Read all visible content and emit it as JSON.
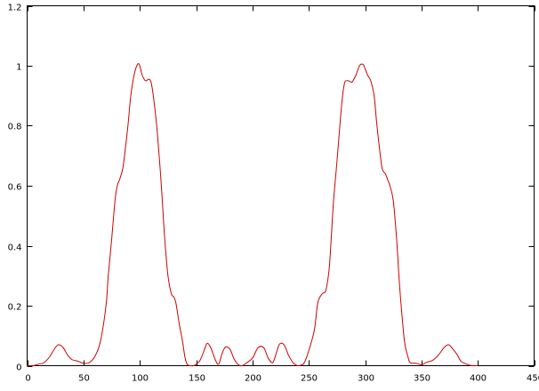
{
  "chart_data": {
    "type": "line",
    "title": "",
    "xlabel": "",
    "ylabel": "",
    "xlim": [
      0,
      450
    ],
    "ylim": [
      0,
      1.2
    ],
    "xticks": [
      0,
      50,
      100,
      150,
      200,
      250,
      300,
      350,
      400,
      450
    ],
    "yticks": [
      0,
      0.2,
      0.4,
      0.6,
      0.8,
      1,
      1.2
    ],
    "xtick_labels": [
      "0",
      "50",
      "100",
      "150",
      "200",
      "250",
      "300",
      "350",
      "400",
      "450"
    ],
    "ytick_labels": [
      "0",
      "0.2",
      "0.4",
      "0.6",
      "0.8",
      "1",
      "1.2"
    ],
    "grid": false,
    "legend": "none",
    "series": [
      {
        "color": "#cc0000",
        "x": [
          0,
          5,
          10,
          15,
          20,
          25,
          28,
          32,
          36,
          40,
          45,
          50,
          55,
          60,
          65,
          70,
          72,
          75,
          78,
          80,
          82,
          85,
          88,
          90,
          92,
          95,
          98,
          100,
          102,
          105,
          108,
          110,
          112,
          115,
          118,
          120,
          122,
          125,
          128,
          130,
          132,
          135,
          138,
          140,
          142,
          145,
          148,
          150,
          153,
          155,
          158,
          160,
          163,
          167,
          170,
          173,
          176,
          180,
          184,
          188,
          191,
          195,
          200,
          205,
          210,
          214,
          218,
          221,
          224,
          228,
          232,
          236,
          240,
          243,
          246,
          250,
          255,
          258,
          262,
          265,
          268,
          270,
          272,
          275,
          278,
          280,
          282,
          285,
          288,
          290,
          292,
          295,
          298,
          300,
          302,
          305,
          308,
          310,
          312,
          315,
          318,
          320,
          322,
          325,
          328,
          330,
          332,
          335,
          338,
          340,
          345,
          350,
          352,
          355,
          360,
          365,
          370,
          374,
          378,
          382,
          385,
          390,
          395,
          400
        ],
        "y": [
          0,
          0,
          0.005,
          0.01,
          0.03,
          0.06,
          0.07,
          0.06,
          0.035,
          0.02,
          0.015,
          0.008,
          0.01,
          0.03,
          0.08,
          0.2,
          0.3,
          0.42,
          0.55,
          0.6,
          0.62,
          0.66,
          0.75,
          0.82,
          0.9,
          0.97,
          1.005,
          1.0,
          0.97,
          0.95,
          0.955,
          0.945,
          0.9,
          0.8,
          0.66,
          0.55,
          0.43,
          0.3,
          0.24,
          0.23,
          0.21,
          0.14,
          0.08,
          0.03,
          0.005,
          0,
          0,
          0.005,
          0.015,
          0.03,
          0.06,
          0.075,
          0.06,
          0.02,
          0.005,
          0.04,
          0.062,
          0.055,
          0.02,
          0.002,
          0,
          0.01,
          0.025,
          0.06,
          0.06,
          0.025,
          0.01,
          0.04,
          0.072,
          0.07,
          0.035,
          0.01,
          0,
          0.002,
          0.01,
          0.05,
          0.12,
          0.21,
          0.24,
          0.25,
          0.32,
          0.43,
          0.55,
          0.68,
          0.82,
          0.9,
          0.945,
          0.95,
          0.945,
          0.955,
          0.97,
          1.0,
          1.005,
          0.99,
          0.97,
          0.95,
          0.9,
          0.82,
          0.75,
          0.66,
          0.64,
          0.62,
          0.6,
          0.55,
          0.42,
          0.3,
          0.2,
          0.08,
          0.03,
          0.01,
          0.008,
          0.003,
          0.006,
          0.012,
          0.018,
          0.035,
          0.06,
          0.07,
          0.055,
          0.035,
          0.015,
          0.005,
          0,
          0
        ]
      }
    ]
  }
}
